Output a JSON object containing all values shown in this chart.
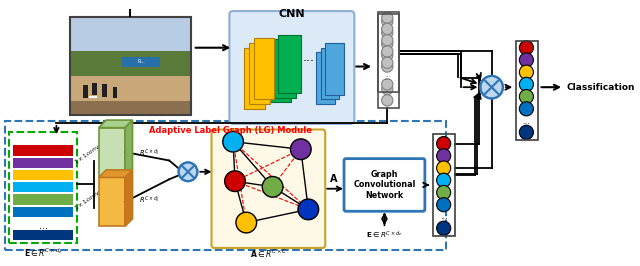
{
  "bg_color": "#ffffff",
  "label_colors": [
    "#cc0000",
    "#7030a0",
    "#ffc000",
    "#00b0f0",
    "#70ad47",
    "#0070c0"
  ],
  "label_colors_bottom": "#003580",
  "node_colors_graph": {
    "cyan": "#00b0f0",
    "purple": "#7030a0",
    "red": "#cc0000",
    "green": "#70ad47",
    "yellow": "#ffc000",
    "blue": "#0035c0"
  },
  "adaptive_label_text": "Adaptive Label Graph (LG) Module",
  "gcn_box_text": "Graph\nConvolutional\nNetwork",
  "classification_text": "Classification",
  "gray_circles": [
    "#c0c0c0",
    "#c0c0c0",
    "#c0c0c0",
    "#c0c0c0",
    "#c0c0c0"
  ],
  "cnn_layer_colors": {
    "orange": "#ffc000",
    "green": "#00b050",
    "blue": "#4472c4"
  }
}
